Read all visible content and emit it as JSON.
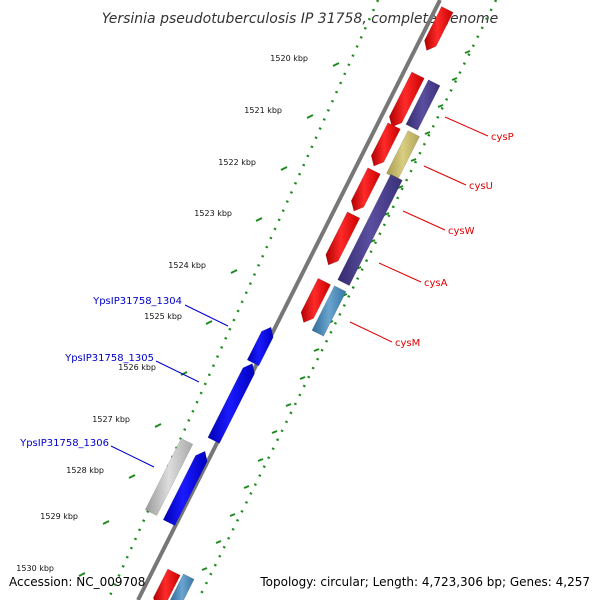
{
  "title": "Yersinia pseudotuberculosis IP 31758, complete genome",
  "accession": "Accession: NC_009708",
  "topology": "Topology: circular; Length: 4,723,306 bp; Genes: 4,257",
  "colors": {
    "forward_cds": "#ff0000",
    "reverse_cds": "#0000ff",
    "cys_purple": "#4b3f8f",
    "cys_khaki": "#c8bd6e",
    "cys_steel": "#4a88b8",
    "pseudo_gray": "#bbbbbb",
    "backbone": "#777777",
    "tick_green": "#1e8a1e",
    "label_red": "#e00000",
    "label_blue": "#0000cc"
  },
  "scale": {
    "unit": "kbp",
    "labels": [
      "1520 kbp",
      "1521 kbp",
      "1522 kbp",
      "1523 kbp",
      "1524 kbp",
      "1525 kbp",
      "1526 kbp",
      "1527 kbp",
      "1528 kbp",
      "1529 kbp",
      "1530 kbp"
    ]
  },
  "gene_labels": [
    {
      "id": "cysP",
      "text": "cysP",
      "color": "red"
    },
    {
      "id": "cysU",
      "text": "cysU",
      "color": "red"
    },
    {
      "id": "cysW",
      "text": "cysW",
      "color": "red"
    },
    {
      "id": "cysA",
      "text": "cysA",
      "color": "red"
    },
    {
      "id": "cysM",
      "text": "cysM",
      "color": "red"
    },
    {
      "id": "ypsip31758-1304",
      "text": "YpsIP31758_1304",
      "color": "blue"
    },
    {
      "id": "ypsip31758-1305",
      "text": "YpsIP31758_1305",
      "color": "blue"
    },
    {
      "id": "ypsip31758-1306",
      "text": "YpsIP31758_1306",
      "color": "blue"
    }
  ]
}
